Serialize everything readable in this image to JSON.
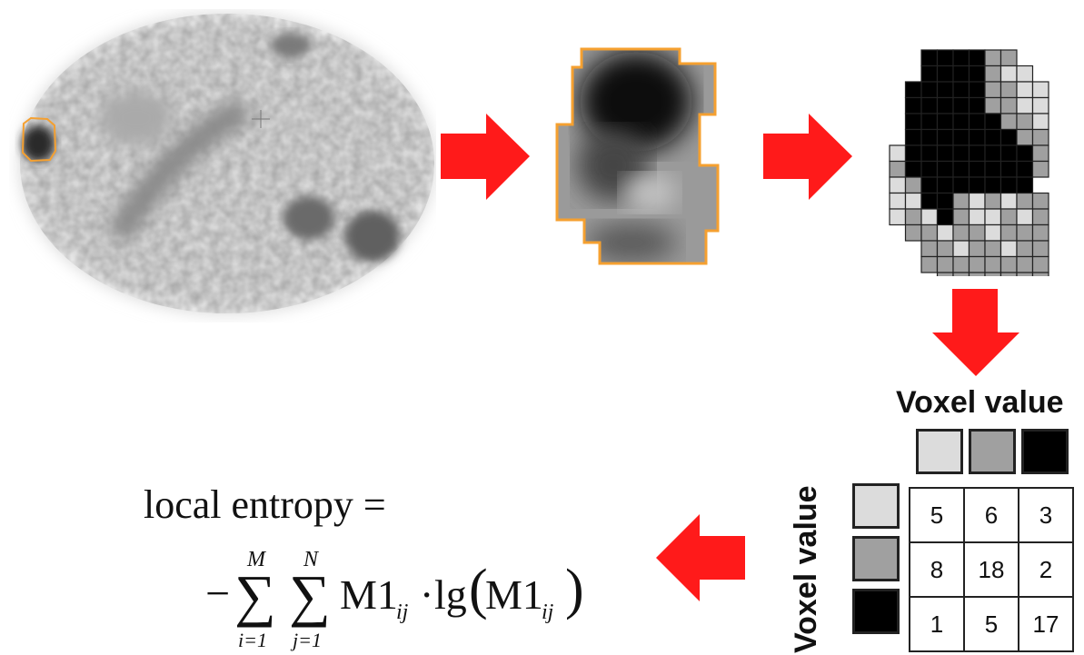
{
  "voxel_header_top": "Voxel value",
  "voxel_header_side": "Voxel value",
  "gray_levels": [
    {
      "shade": "#dcdcdc"
    },
    {
      "shade": "#a0a0a0"
    },
    {
      "shade": "#000000"
    }
  ],
  "glcm": [
    [
      "5",
      "6",
      "3"
    ],
    [
      "8",
      "18",
      "2"
    ],
    [
      "1",
      "5",
      "17"
    ]
  ],
  "formula": {
    "line1": "local entropy =",
    "minus": "−",
    "sigma": "∑",
    "sum1_upper": "M",
    "sum1_lower": "i=1",
    "sum2_upper": "N",
    "sum2_lower": "j=1",
    "term1": "M1",
    "term1_sub": "ij",
    "dot": "·",
    "func": "lg",
    "term2": "M1",
    "term2_sub": "ij"
  },
  "colors": {
    "arrow": "#ff1a1a",
    "roi_outline": "#f5a030",
    "grid_line": "#222222"
  }
}
